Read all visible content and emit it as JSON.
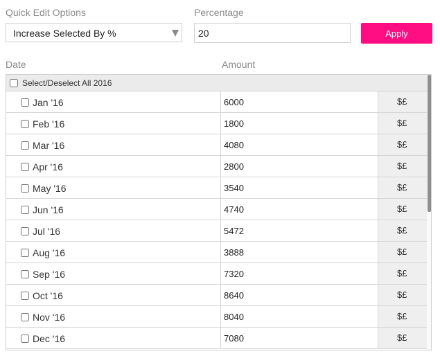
{
  "quick_edit": {
    "label": "Quick Edit Options",
    "selected": "Increase Selected By %"
  },
  "percentage": {
    "label": "Percentage",
    "value": "20"
  },
  "apply_label": "Apply",
  "columns": {
    "date": "Date",
    "amount": "Amount"
  },
  "select_all_label": "Select/Deselect All 2016",
  "currency_symbol": "$£",
  "rows": [
    {
      "date": "Jan '16",
      "amount": "6000"
    },
    {
      "date": "Feb '16",
      "amount": "1800"
    },
    {
      "date": "Mar '16",
      "amount": "4080"
    },
    {
      "date": "Apr '16",
      "amount": "2800"
    },
    {
      "date": "May '16",
      "amount": "3540"
    },
    {
      "date": "Jun '16",
      "amount": "4740"
    },
    {
      "date": "Jul '16",
      "amount": "5472"
    },
    {
      "date": "Aug '16",
      "amount": "3888"
    },
    {
      "date": "Sep '16",
      "amount": "7320"
    },
    {
      "date": "Oct '16",
      "amount": "8640"
    },
    {
      "date": "Nov '16",
      "amount": "8040"
    },
    {
      "date": "Dec '16",
      "amount": "7080"
    }
  ],
  "colors": {
    "accent": "#ff0d83",
    "header_bg": "#ebebeb",
    "currency_bg": "#efefef"
  }
}
